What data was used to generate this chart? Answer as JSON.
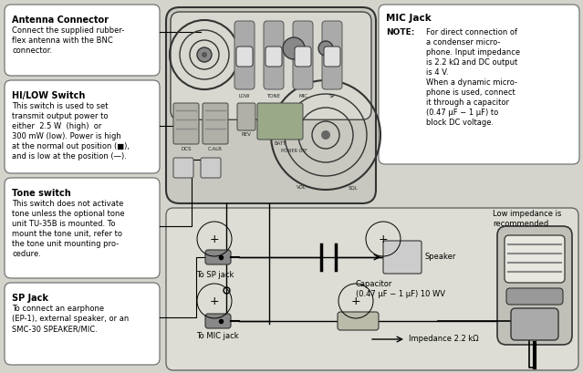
{
  "bg_color": "#d4d4cc",
  "box_bg": "#ffffff",
  "radio_bg": "#c8c8c0",
  "wire_area_bg": "#ddddd5",
  "boxes_left": [
    {
      "title": "Antenna Connector",
      "lines": [
        "Connect the supplied rubber-",
        "flex antenna with the BNC",
        "connector."
      ]
    },
    {
      "title": "HI/LOW Switch",
      "lines": [
        "This switch is used to set",
        "transmit output power to",
        "either  2.5 W  (high)  or",
        "300 mW (low). Power is high",
        "at the normal out position (■),",
        "and is low at the position (—)."
      ]
    },
    {
      "title": "Tone switch",
      "lines": [
        "This switch does not activate",
        "tone unless the optional tone",
        "unit TU-35B is mounted. To",
        "mount the tone unit, refer to",
        "the tone unit mounting pro-",
        "cedure."
      ]
    },
    {
      "title": "SP Jack",
      "lines": [
        "To connect an earphone",
        "(EP-1), external speaker, or an",
        "SMC-30 SPEAKER/MIC."
      ]
    }
  ],
  "mic_jack_title": "MIC Jack",
  "mic_jack_note": "NOTE:",
  "mic_jack_text": [
    "For direct connection of",
    "a condenser micro-",
    "phone. Input impedance",
    "is 2.2 kΩ and DC output",
    "is 4 V.",
    "When a dynamic micro-",
    "phone is used, connect",
    "it through a capacitor",
    "(0.47 μF − 1 μF) to",
    "block DC voltage."
  ],
  "sp_label": "To SP jack",
  "mic_label": "To MIC jack",
  "speaker_label": "Speaker",
  "cap_label": "Capacitor\n(0.47 μF − 1 μF) 10 WV",
  "low_imp_label": "Low impedance is\nrecommended",
  "imp_label": "Impedance 2.2 kΩ"
}
